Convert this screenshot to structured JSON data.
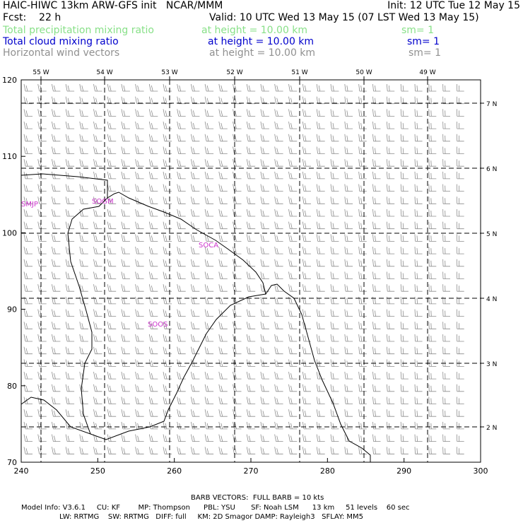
{
  "header": {
    "line1_left": "HAIC-HIWC 13km ARW-GFS init   NCAR/MMM",
    "line1_right": "Init: 12 UTC Tue 12 May 15",
    "fcst": "Fcst:    22 h",
    "valid": "Valid: 10 UTC Wed 13 May 15 (07 LST Wed 13 May 15)",
    "fields": [
      {
        "name": "Total precipitation mixing ratio",
        "height": "at height = 10.00 km",
        "sm": "sm= 1",
        "color": "#88e088"
      },
      {
        "name": "Total cloud mixing ratio",
        "height": "at height = 10.00 km",
        "sm": "sm= 1",
        "color": "#0000cc"
      },
      {
        "name": "Horizontal wind vectors",
        "height": "at height = 10.00 km",
        "sm": "sm= 1",
        "color": "#909090"
      }
    ]
  },
  "map": {
    "x_ticks": [
      "240",
      "250",
      "260",
      "270",
      "280",
      "290",
      "300"
    ],
    "y_ticks": [
      "70",
      "80",
      "90",
      "100",
      "110",
      "120"
    ],
    "lon_labels": [
      "55 W",
      "54 W",
      "53 W",
      "52 W",
      "51 W",
      "50 W",
      "49 W"
    ],
    "lat_labels": [
      "7 N",
      "6 N",
      "5 N",
      "4 N",
      "3 N",
      "2 N"
    ],
    "stations": [
      {
        "label": "SMJP",
        "color": "#cc33cc"
      },
      {
        "label": "SOGM",
        "color": "#cc33cc"
      },
      {
        "label": "SOCA",
        "color": "#cc33cc"
      },
      {
        "label": "SOOS",
        "color": "#cc33cc"
      }
    ],
    "barb_color": "#8c8c8c"
  },
  "footer": {
    "barb_note": "BARB VECTORS:  FULL BARB = 10 kts",
    "line1": "Model Info: V3.6.1     CU: KF        MP: Thompson      PBL: YSU       SF: Noah LSM      13 km     51 levels    60 sec",
    "line2": "                 LW: RRTMG    SW: RRTMG   DIFF: full     KM: 2D Smagor DAMP: Rayleigh3   SFLAY: MM5"
  }
}
